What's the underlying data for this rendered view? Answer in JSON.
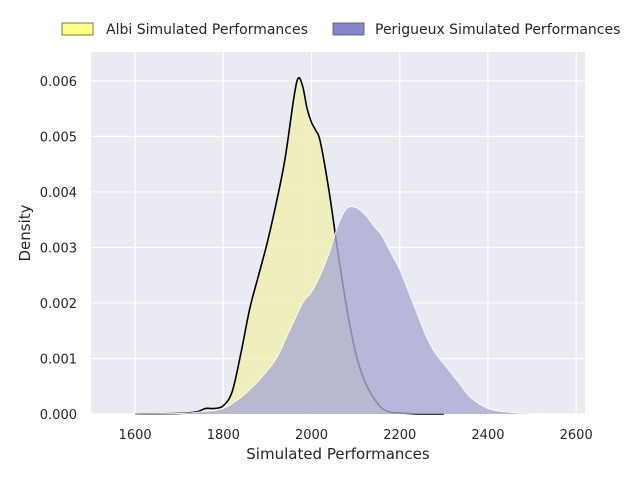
{
  "chart_data": {
    "type": "area",
    "title": "",
    "xlabel": "Simulated Performances",
    "ylabel": "Density",
    "xlim": [
      1500,
      2620
    ],
    "ylim": [
      0,
      0.00652
    ],
    "x_ticks": [
      1600,
      1800,
      2000,
      2200,
      2400,
      2600
    ],
    "x_tick_labels": [
      "1600",
      "1800",
      "2000",
      "2200",
      "2400",
      "2600"
    ],
    "y_ticks": [
      0,
      0.001,
      0.002,
      0.003,
      0.004,
      0.005,
      0.006
    ],
    "y_tick_labels": [
      "0.000",
      "0.001",
      "0.002",
      "0.003",
      "0.004",
      "0.005",
      "0.006"
    ],
    "grid": true,
    "legend_position": "top",
    "series": [
      {
        "name": "Albi Simulated Performances",
        "fill_color": "#f0f0b4",
        "legend_color": "#fefe7f",
        "line_color": "#000000",
        "x": [
          1600,
          1700,
          1740,
          1760,
          1780,
          1800,
          1820,
          1840,
          1860,
          1880,
          1900,
          1920,
          1940,
          1960,
          1970,
          1980,
          1990,
          2000,
          2010,
          2020,
          2040,
          2060,
          2080,
          2100,
          2120,
          2140,
          2160,
          2180,
          2200,
          2250,
          2300
        ],
        "y": [
          0,
          1e-05,
          4e-05,
          0.0001,
          0.0001,
          0.00015,
          0.0004,
          0.0011,
          0.0019,
          0.0025,
          0.0031,
          0.0038,
          0.0046,
          0.0057,
          0.00605,
          0.0059,
          0.0055,
          0.00525,
          0.0051,
          0.0049,
          0.004,
          0.0029,
          0.0019,
          0.0011,
          0.0006,
          0.0003,
          0.0001,
          3e-05,
          2e-05,
          0,
          0
        ]
      },
      {
        "name": "Perigueux Simulated Performances",
        "fill_color": "#aaaad3",
        "legend_color": "#8585c7",
        "line_color": "#ffffff",
        "x": [
          1560,
          1700,
          1760,
          1800,
          1840,
          1880,
          1920,
          1950,
          1980,
          2000,
          2020,
          2040,
          2060,
          2080,
          2100,
          2120,
          2140,
          2160,
          2180,
          2200,
          2220,
          2240,
          2260,
          2280,
          2300,
          2320,
          2340,
          2360,
          2400,
          2450,
          2500,
          2560
        ],
        "y": [
          0,
          1e-05,
          5e-05,
          0.0001,
          0.0003,
          0.0006,
          0.001,
          0.0015,
          0.002,
          0.0022,
          0.0025,
          0.0029,
          0.0034,
          0.0037,
          0.00372,
          0.0036,
          0.0034,
          0.0032,
          0.0029,
          0.0026,
          0.0022,
          0.0018,
          0.0014,
          0.0011,
          0.0009,
          0.0007,
          0.0005,
          0.0003,
          0.0001,
          3e-05,
          1e-05,
          0
        ]
      }
    ]
  }
}
